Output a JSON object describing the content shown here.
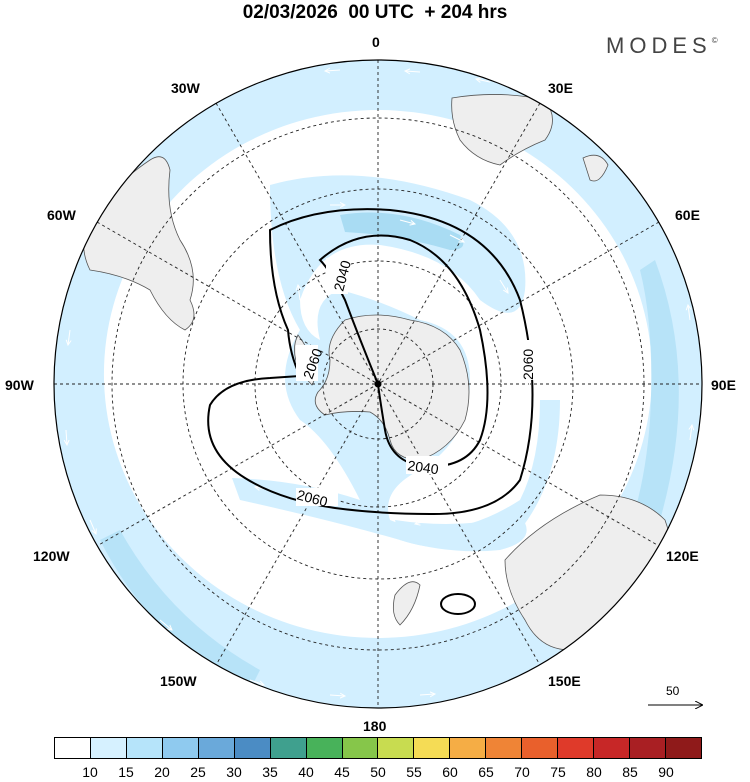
{
  "header": {
    "title": "02/03/2026  00 UTC  + 204 hrs",
    "brand": "MODES",
    "brand_mark": "©"
  },
  "map": {
    "projection": "south-polar-stereographic",
    "longitude_labels": {
      "lon_0": "0",
      "lon_30e": "30E",
      "lon_60e": "60E",
      "lon_90e": "90E",
      "lon_120e": "120E",
      "lon_150e": "150E",
      "lon_180": "180",
      "lon_150w": "150W",
      "lon_120w": "120W",
      "lon_90w": "90W",
      "lon_60w": "60W",
      "lon_30w": "30W"
    },
    "contour_labels": {
      "c1": "2040",
      "c2": "2060",
      "c3": "2060",
      "c4": "2040",
      "c5": "2060"
    },
    "reference_vector": {
      "value": "50"
    },
    "colors": {
      "land": "#eeeeee",
      "ocean": "#ffffff",
      "wind_light": "#d2efff",
      "wind_mid": "#b0e0f6",
      "contour": "#000000"
    }
  },
  "colorbar": {
    "ticks": [
      "10",
      "15",
      "20",
      "25",
      "30",
      "35",
      "40",
      "45",
      "50",
      "55",
      "60",
      "65",
      "70",
      "75",
      "80",
      "85",
      "90"
    ],
    "colors": [
      "#ffffff",
      "#d6f1ff",
      "#b6e4fa",
      "#8fcaef",
      "#6aa9da",
      "#4b8cc4",
      "#3fa08e",
      "#48b25a",
      "#86c64a",
      "#c8dc50",
      "#f5dc55",
      "#f5ad45",
      "#ef8436",
      "#e9602c",
      "#df3a2a",
      "#c72727",
      "#a91f23",
      "#8f1a1a"
    ]
  }
}
